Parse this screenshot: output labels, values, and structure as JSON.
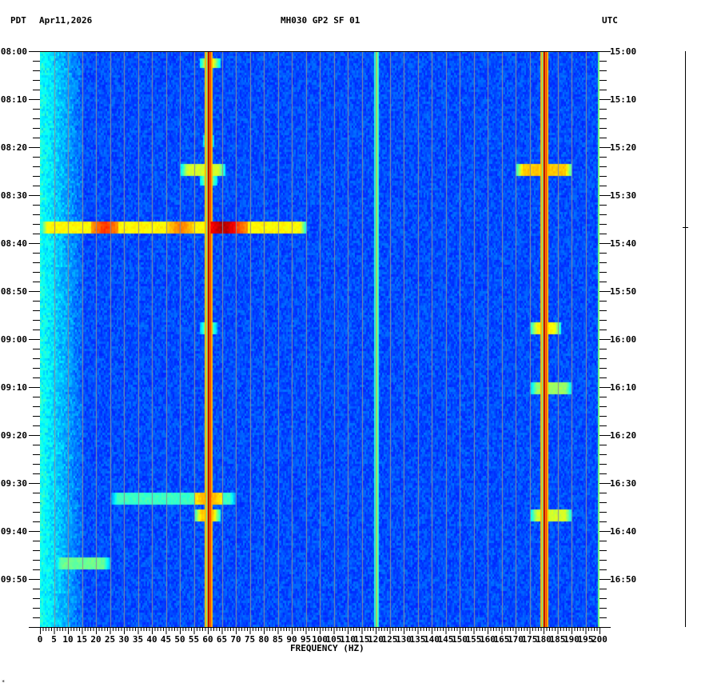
{
  "header": {
    "left_tz": "PDT",
    "date": "Apr11,2026",
    "station": "MH030 GP2 SF 01",
    "right_tz": "UTC"
  },
  "footer_mark": "*",
  "colors": {
    "background_blue": "#0a2cf0",
    "gridline": "#8c8c9c",
    "hot": "#8b0000"
  },
  "chart_data": {
    "type": "heatmap",
    "title": "MH030 GP2 SF 01",
    "xlabel": "FREQUENCY (HZ)",
    "ylabel": "",
    "xlim": [
      0,
      200
    ],
    "x_ticks": [
      "0",
      "5",
      "10",
      "15",
      "20",
      "25",
      "30",
      "35",
      "40",
      "45",
      "50",
      "55",
      "60",
      "65",
      "70",
      "75",
      "80",
      "85",
      "90",
      "95",
      "100",
      "105",
      "110",
      "115",
      "120",
      "125",
      "130",
      "135",
      "140",
      "145",
      "150",
      "155",
      "160",
      "165",
      "170",
      "175",
      "180",
      "185",
      "190",
      "195",
      "200"
    ],
    "y_ticks_left": [
      "08:00",
      "08:10",
      "08:20",
      "08:30",
      "08:40",
      "08:50",
      "09:00",
      "09:10",
      "09:20",
      "09:30",
      "09:40",
      "09:50"
    ],
    "y_ticks_right": [
      "15:00",
      "15:10",
      "15:20",
      "15:30",
      "15:40",
      "15:50",
      "16:00",
      "16:10",
      "16:20",
      "16:30",
      "16:40",
      "16:50"
    ],
    "y_minor_tick_minutes": 2,
    "time_span_minutes": 120,
    "grid": true,
    "grid_every_hz": 5,
    "colormap": "jet",
    "persistent_lines_hz": [
      {
        "freq": 60,
        "intensity": 1.0,
        "width_hz": 1.5
      },
      {
        "freq": 180,
        "intensity": 1.0,
        "width_hz": 1.5
      },
      {
        "freq": 120,
        "intensity": 0.45,
        "width_hz": 0.6
      },
      {
        "freq": 199.5,
        "intensity": 0.35,
        "width_hz": 0.5
      }
    ],
    "events": [
      {
        "minute": 2.2,
        "f_start": 57,
        "f_end": 64,
        "intensity": 0.65
      },
      {
        "minute": 18.5,
        "f_start": 58,
        "f_end": 62,
        "intensity": 0.55
      },
      {
        "minute": 24.5,
        "f_start": 50,
        "f_end": 66,
        "intensity": 0.6
      },
      {
        "minute": 24.5,
        "f_start": 170,
        "f_end": 190,
        "intensity": 0.7
      },
      {
        "minute": 26.5,
        "f_start": 57,
        "f_end": 63,
        "intensity": 0.6
      },
      {
        "minute": 36.5,
        "f_start": 0,
        "f_end": 95,
        "intensity": 0.65,
        "peaks": [
          [
            23,
            0.85
          ],
          [
            50,
            0.78
          ],
          [
            65,
            0.98
          ],
          [
            69,
            0.85
          ]
        ]
      },
      {
        "minute": 57.5,
        "f_start": 57,
        "f_end": 63,
        "intensity": 0.55
      },
      {
        "minute": 57.5,
        "f_start": 175,
        "f_end": 186,
        "intensity": 0.65
      },
      {
        "minute": 70,
        "f_start": 175,
        "f_end": 190,
        "intensity": 0.55
      },
      {
        "minute": 93,
        "f_start": 25,
        "f_end": 70,
        "intensity": 0.45,
        "peaks": [
          [
            60,
            0.75
          ]
        ]
      },
      {
        "minute": 96.5,
        "f_start": 55,
        "f_end": 64,
        "intensity": 0.7
      },
      {
        "minute": 96.5,
        "f_start": 175,
        "f_end": 190,
        "intensity": 0.6
      },
      {
        "minute": 106.5,
        "f_start": 5,
        "f_end": 25,
        "intensity": 0.5
      }
    ]
  }
}
